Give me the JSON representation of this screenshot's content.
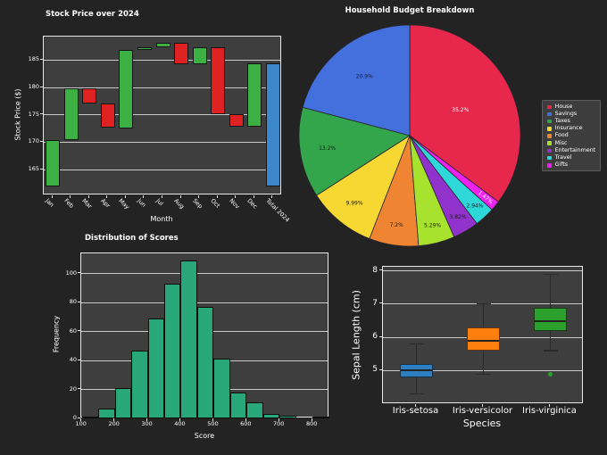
{
  "figure": {
    "background": "#232323",
    "axes_background": "#3e3e3e",
    "grid_color": "#ebebeb",
    "text_color": "#ffffff"
  },
  "chart_data": [
    {
      "id": "stock-waterfall",
      "type": "bar",
      "title": "Stock Price over 2024",
      "xlabel": "Month",
      "ylabel": "Stock Price ($)",
      "ylim": [
        160.3,
        189.3
      ],
      "yticks": [
        165,
        170,
        175,
        180,
        185
      ],
      "grid": true,
      "colors": {
        "up": "#3cb043",
        "down": "#e02121",
        "total": "#3b87c9"
      },
      "bars": [
        {
          "label": "Jan",
          "from": 162.0,
          "to": 170.4,
          "kind": "up"
        },
        {
          "label": "Feb",
          "from": 170.4,
          "to": 179.9,
          "kind": "up"
        },
        {
          "label": "Mar",
          "from": 179.9,
          "to": 177.1,
          "kind": "down"
        },
        {
          "label": "Apr",
          "from": 177.1,
          "to": 172.6,
          "kind": "down"
        },
        {
          "label": "May",
          "from": 172.6,
          "to": 186.8,
          "kind": "up"
        },
        {
          "label": "Jun",
          "from": 186.8,
          "to": 187.4,
          "kind": "up"
        },
        {
          "label": "Jul",
          "from": 187.4,
          "to": 188.2,
          "kind": "up"
        },
        {
          "label": "Aug",
          "from": 188.2,
          "to": 184.3,
          "kind": "down"
        },
        {
          "label": "Sep",
          "from": 184.3,
          "to": 187.4,
          "kind": "up"
        },
        {
          "label": "Oct",
          "from": 187.4,
          "to": 175.2,
          "kind": "down"
        },
        {
          "label": "Nov",
          "from": 175.2,
          "to": 172.9,
          "kind": "down"
        },
        {
          "label": "Dec",
          "from": 172.9,
          "to": 184.4,
          "kind": "up"
        },
        {
          "label": "Total 2024",
          "from": 162.0,
          "to": 184.4,
          "kind": "total"
        }
      ]
    },
    {
      "id": "budget-pie",
      "type": "pie",
      "title": "Household Budget Breakdown",
      "start_angle_deg": -36.72,
      "direction": "counterclockwise",
      "legend_position": "right",
      "slices": [
        {
          "label": "House",
          "value": 35.2,
          "pct_label": "35.2%",
          "color": "#e8274d",
          "label_color": "#ffffff"
        },
        {
          "label": "Savings",
          "value": 20.9,
          "pct_label": "20.9%",
          "color": "#4470dd",
          "label_color": "#1a1a1a"
        },
        {
          "label": "Taxes",
          "value": 13.2,
          "pct_label": "13.2%",
          "color": "#33a64c",
          "label_color": "#1a1a1a"
        },
        {
          "label": "Insurance",
          "value": 9.99,
          "pct_label": "9.99%",
          "color": "#f7d731",
          "label_color": "#1a1a1a"
        },
        {
          "label": "Food",
          "value": 7.2,
          "pct_label": "7.2%",
          "color": "#ef8432",
          "label_color": "#1a1a1a"
        },
        {
          "label": "Misc",
          "value": 5.29,
          "pct_label": "5.29%",
          "color": "#a6e22e",
          "label_color": "#1a1a1a"
        },
        {
          "label": "Entertainment",
          "value": 3.82,
          "pct_label": "3.82%",
          "color": "#9232cc",
          "label_color": "#1a1a1a"
        },
        {
          "label": "Travel",
          "value": 2.94,
          "pct_label": "2.94%",
          "color": "#2fd8d8",
          "label_color": "#1a1a1a"
        },
        {
          "label": "Gifts",
          "value": 1.47,
          "pct_label": "1.47%",
          "color": "#ee22ee",
          "label_color": "#ffffff",
          "rotate_label": true
        }
      ]
    },
    {
      "id": "score-histogram",
      "type": "bar",
      "title": "Distribution of Scores",
      "xlabel": "Score",
      "ylabel": "Frequency",
      "bar_color": "#27a77a",
      "bin_start": 100,
      "bin_width": 50,
      "values": [
        1,
        7,
        21,
        47,
        69,
        93,
        109,
        77,
        41,
        18,
        11,
        3,
        2,
        0,
        1
      ],
      "xticks": [
        100,
        200,
        300,
        400,
        500,
        600,
        700,
        800
      ],
      "yticks": [
        0,
        20,
        40,
        60,
        80,
        100
      ],
      "xlim": [
        98,
        851
      ],
      "ylim": [
        0,
        114
      ],
      "grid": true
    },
    {
      "id": "iris-boxplot",
      "type": "table",
      "box_type": "boxplot",
      "title": "",
      "xlabel": "Species",
      "ylabel": "Sepal Length (cm)",
      "ylim": [
        3.99,
        8.125
      ],
      "yticks": [
        5,
        6,
        7,
        8
      ],
      "grid": true,
      "boxes": [
        {
          "label": "Iris-setosa",
          "whisker_low": 4.3,
          "q1": 4.8,
          "median": 5.0,
          "q3": 5.2,
          "whisker_high": 5.8,
          "outliers": [],
          "color": "#2e7fc1"
        },
        {
          "label": "Iris-versicolor",
          "whisker_low": 4.9,
          "q1": 5.6,
          "median": 5.9,
          "q3": 6.3,
          "whisker_high": 7.0,
          "outliers": [],
          "color": "#ff7f0e"
        },
        {
          "label": "Iris-virginica",
          "whisker_low": 5.6,
          "q1": 6.2,
          "median": 6.5,
          "q3": 6.9,
          "whisker_high": 7.9,
          "outliers": [
            4.9
          ],
          "color": "#2ca02c"
        }
      ]
    }
  ]
}
